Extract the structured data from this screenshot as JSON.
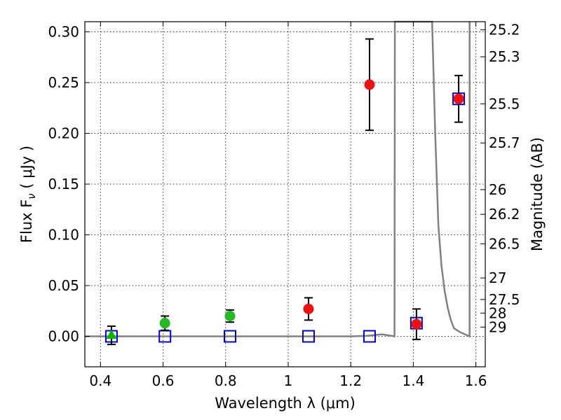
{
  "chart_data": {
    "type": "scatter",
    "xlabel": "Wavelength  λ (μm)",
    "ylabel": "Flux  F",
    "ylabel_sub": "ν",
    "ylabel_unit": " ( μJy )",
    "y2label": "Magnitude (AB)",
    "xlim": [
      0.35,
      1.63
    ],
    "ylim": [
      -0.03,
      0.31
    ],
    "grid": true,
    "x_ticks": [
      {
        "value": 0.4,
        "label": "0.4"
      },
      {
        "value": 0.6,
        "label": "0.6"
      },
      {
        "value": 0.8,
        "label": "0.8"
      },
      {
        "value": 1.0,
        "label": "1"
      },
      {
        "value": 1.2,
        "label": "1.2"
      },
      {
        "value": 1.4,
        "label": "1.4"
      },
      {
        "value": 1.6,
        "label": "1.6"
      }
    ],
    "y_ticks": [
      {
        "value": 0.0,
        "label": "0.00"
      },
      {
        "value": 0.05,
        "label": "0.05"
      },
      {
        "value": 0.1,
        "label": "0.10"
      },
      {
        "value": 0.15,
        "label": "0.15"
      },
      {
        "value": 0.2,
        "label": "0.20"
      },
      {
        "value": 0.25,
        "label": "0.25"
      },
      {
        "value": 0.3,
        "label": "0.30"
      }
    ],
    "y2_ticks": [
      {
        "label": "25.2",
        "mag": 25.2
      },
      {
        "label": "25.3",
        "mag": 25.3
      },
      {
        "label": "25.5",
        "mag": 25.5
      },
      {
        "label": "25.7",
        "mag": 25.7
      },
      {
        "label": "26",
        "mag": 26.0
      },
      {
        "label": "26.2",
        "mag": 26.2
      },
      {
        "label": "26.5",
        "mag": 26.5
      },
      {
        "label": "27",
        "mag": 27.0
      },
      {
        "label": "27.5",
        "mag": 27.5
      },
      {
        "label": "28",
        "mag": 28.0
      },
      {
        "label": "29",
        "mag": 29.0
      }
    ],
    "series": [
      {
        "marker": "triangle",
        "color": "#00bb00",
        "points": [
          {
            "x": 0.435,
            "y": 0.001,
            "err": 0.009
          }
        ]
      },
      {
        "marker": "circle",
        "color": "#22bb22",
        "points": [
          {
            "x": 0.606,
            "y": 0.013,
            "err": 0.007
          },
          {
            "x": 0.814,
            "y": 0.02,
            "err": 0.006
          }
        ]
      },
      {
        "marker": "circle",
        "color": "#ee1111",
        "points": [
          {
            "x": 1.065,
            "y": 0.027,
            "err": 0.011
          },
          {
            "x": 1.26,
            "y": 0.248,
            "err": 0.045
          },
          {
            "x": 1.41,
            "y": 0.012,
            "err": 0.015
          },
          {
            "x": 1.545,
            "y": 0.234,
            "err": 0.023
          }
        ]
      },
      {
        "marker": "square",
        "color": "#0000dd",
        "points": [
          {
            "x": 0.435,
            "y": 0.0
          },
          {
            "x": 0.606,
            "y": 0.0
          },
          {
            "x": 0.814,
            "y": 0.0
          },
          {
            "x": 1.065,
            "y": 0.0
          },
          {
            "x": 1.26,
            "y": 0.0
          },
          {
            "x": 1.41,
            "y": 0.013
          },
          {
            "x": 1.545,
            "y": 0.234
          }
        ]
      }
    ],
    "model_curve": {
      "color": "#808080",
      "points": [
        [
          0.35,
          0.0
        ],
        [
          1.2,
          0.0
        ],
        [
          1.25,
          0.0005
        ],
        [
          1.3,
          0.002
        ],
        [
          1.34,
          0.0
        ],
        [
          1.341,
          0.32
        ],
        [
          1.46,
          0.32
        ],
        [
          1.47,
          0.2
        ],
        [
          1.48,
          0.11
        ],
        [
          1.49,
          0.07
        ],
        [
          1.5,
          0.045
        ],
        [
          1.51,
          0.028
        ],
        [
          1.52,
          0.016
        ],
        [
          1.53,
          0.008
        ],
        [
          1.55,
          0.004
        ],
        [
          1.58,
          0.0
        ],
        [
          1.58,
          0.32
        ]
      ]
    }
  }
}
